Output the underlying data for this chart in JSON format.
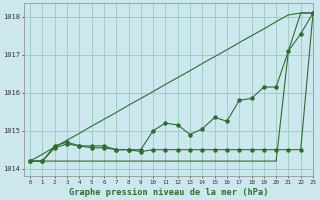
{
  "background_color": "#cce8ee",
  "grid_color": "#99ccbb",
  "line_color": "#2d6e2d",
  "xlabel": "Graphe pression niveau de la mer (hPa)",
  "xlim": [
    -0.5,
    23
  ],
  "ylim": [
    1013.8,
    1018.35
  ],
  "yticks": [
    1014,
    1015,
    1016,
    1017,
    1018
  ],
  "xticks": [
    0,
    1,
    2,
    3,
    4,
    5,
    6,
    7,
    8,
    9,
    10,
    11,
    12,
    13,
    14,
    15,
    16,
    17,
    18,
    19,
    20,
    21,
    22,
    23
  ],
  "x": [
    0,
    1,
    2,
    3,
    4,
    5,
    6,
    7,
    8,
    9,
    10,
    11,
    12,
    13,
    14,
    15,
    16,
    17,
    18,
    19,
    20,
    21,
    22,
    23
  ],
  "line_main": [
    1014.2,
    1014.2,
    1014.6,
    1014.7,
    1014.6,
    1014.6,
    1014.6,
    1014.5,
    1014.5,
    1014.5,
    1015.0,
    1015.2,
    1015.15,
    1014.9,
    1015.05,
    1015.35,
    1015.25,
    1015.8,
    1015.85,
    1016.15,
    1016.15,
    1017.1,
    1017.55,
    1018.1
  ],
  "line_flat": [
    1014.2,
    1014.2,
    1014.55,
    1014.65,
    1014.6,
    1014.55,
    1014.55,
    1014.5,
    1014.5,
    1014.45,
    1014.5,
    1014.5,
    1014.5,
    1014.5,
    1014.5,
    1014.5,
    1014.5,
    1014.5,
    1014.5,
    1014.5,
    1014.5,
    1014.5,
    1014.5,
    1018.1
  ],
  "line_diag1": [
    1014.2,
    1014.38,
    1014.57,
    1014.75,
    1014.93,
    1015.12,
    1015.3,
    1015.48,
    1015.67,
    1015.85,
    1016.03,
    1016.22,
    1016.4,
    1016.58,
    1016.77,
    1016.95,
    1017.13,
    1017.32,
    1017.5,
    1017.68,
    1017.87,
    1018.05,
    1018.1,
    1018.1
  ],
  "line_diag2": [
    1014.2,
    1014.2,
    1014.2,
    1014.2,
    1014.2,
    1014.2,
    1014.2,
    1014.2,
    1014.2,
    1014.2,
    1014.2,
    1014.2,
    1014.2,
    1014.2,
    1014.2,
    1014.2,
    1014.2,
    1014.2,
    1014.2,
    1014.2,
    1014.2,
    1017.1,
    1018.1,
    1018.1
  ]
}
